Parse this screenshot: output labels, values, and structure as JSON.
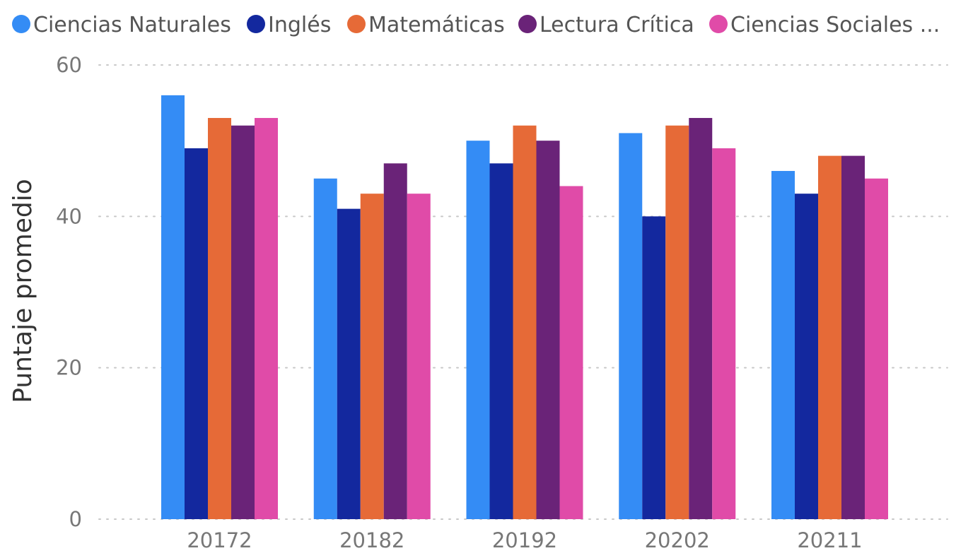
{
  "chart_data": {
    "type": "bar",
    "title": "",
    "xlabel": "",
    "ylabel": "Puntaje promedio",
    "categories": [
      "20172",
      "20182",
      "20192",
      "20202",
      "20211"
    ],
    "ylim": [
      0,
      60
    ],
    "yticks": [
      0,
      20,
      40,
      60
    ],
    "grid": true,
    "legend_position": "top",
    "series": [
      {
        "name": "Ciencias Naturales",
        "color": "#348CF5",
        "values": [
          56,
          45,
          50,
          51,
          46
        ]
      },
      {
        "name": "Inglés",
        "color": "#13289E",
        "values": [
          49,
          41,
          47,
          40,
          43
        ]
      },
      {
        "name": "Matemáticas",
        "color": "#E66A37",
        "values": [
          53,
          43,
          52,
          52,
          48
        ]
      },
      {
        "name": "Lectura Crítica",
        "color": "#6A2378",
        "values": [
          52,
          47,
          50,
          53,
          48
        ]
      },
      {
        "name": "Ciencias Sociales ...",
        "color": "#E04BA8",
        "values": [
          53,
          43,
          44,
          49,
          45
        ]
      }
    ]
  }
}
